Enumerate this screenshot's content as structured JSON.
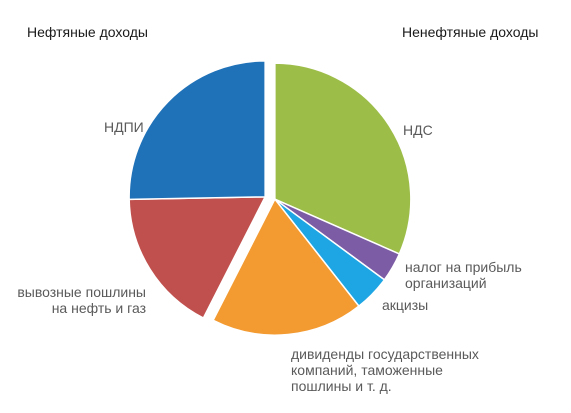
{
  "chart_data": {
    "type": "pie",
    "groups": [
      {
        "name": "Нефтяные доходы",
        "slices": [
          "НДПИ",
          "вывозные пошлины\nна нефть и газ"
        ]
      },
      {
        "name": "Ненефтяные доходы",
        "slices": [
          "НДС",
          "налог на прибыль\nорганизаций",
          "акцизы",
          "дивиденды государственных\nкомпаний, таможенные\nпошлины и т. д."
        ]
      }
    ],
    "slices": [
      {
        "label": "НДС",
        "value": 31.6,
        "color": "#9dbd49"
      },
      {
        "label": "налог на прибыль\nорганизаций",
        "value": 3.5,
        "color": "#7c5ca4"
      },
      {
        "label": "акцизы",
        "value": 4.3,
        "color": "#1da6e3"
      },
      {
        "label": "дивиденды государственных\nкомпаний, таможенные\nпошлины и т. д.",
        "value": 18.1,
        "color": "#f39a31"
      },
      {
        "label": "вывозные пошлины\nна нефть и газ",
        "value": 17.2,
        "color": "#c0504d"
      },
      {
        "label": "НДПИ",
        "value": 25.3,
        "color": "#1f71b8"
      }
    ]
  }
}
